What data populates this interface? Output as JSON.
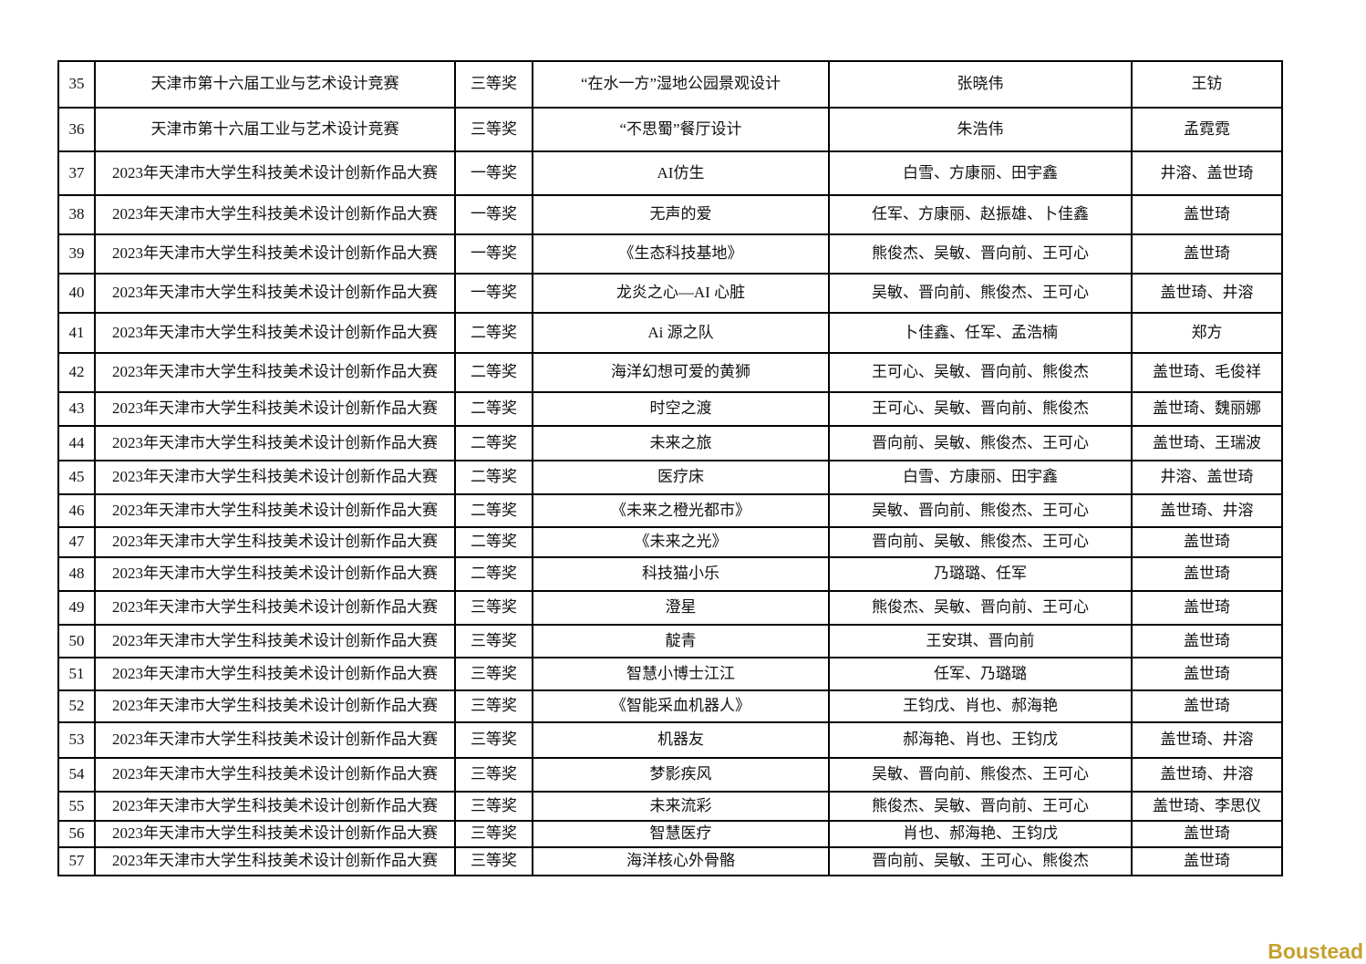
{
  "page": {
    "background_color": "#ffffff",
    "text_color": "#111111",
    "table_border_color": "#000000"
  },
  "watermark": {
    "text": "Boustead",
    "color": "#C5A02E"
  },
  "table": {
    "visible_row_range": "35-57",
    "rows": [
      {
        "no": "35",
        "competition": "天津市第十六届工业与艺术设计竞赛",
        "award": "三等奖",
        "work": "“在水一方”湿地公园景观设计",
        "participants": "张晓伟",
        "advisors": "王钫"
      },
      {
        "no": "36",
        "competition": "天津市第十六届工业与艺术设计竞赛",
        "award": "三等奖",
        "work": "“不思蜀”餐厅设计",
        "participants": "朱浩伟",
        "advisors": "孟霓霓"
      },
      {
        "no": "37",
        "competition": "2023年天津市大学生科技美术设计创新作品大赛",
        "award": "一等奖",
        "work": "AI仿生",
        "participants": "白雪、方康丽、田宇鑫",
        "advisors": "井溶、盖世琦"
      },
      {
        "no": "38",
        "competition": "2023年天津市大学生科技美术设计创新作品大赛",
        "award": "一等奖",
        "work": "无声的爱",
        "participants": "任军、方康丽、赵振雄、卜佳鑫",
        "advisors": "盖世琦"
      },
      {
        "no": "39",
        "competition": "2023年天津市大学生科技美术设计创新作品大赛",
        "award": "一等奖",
        "work": "《生态科技基地》",
        "participants": "熊俊杰、吴敏、晋向前、王可心",
        "advisors": "盖世琦"
      },
      {
        "no": "40",
        "competition": "2023年天津市大学生科技美术设计创新作品大赛",
        "award": "一等奖",
        "work": "龙炎之心—AI 心脏",
        "participants": "吴敏、晋向前、熊俊杰、王可心",
        "advisors": "盖世琦、井溶"
      },
      {
        "no": "41",
        "competition": "2023年天津市大学生科技美术设计创新作品大赛",
        "award": "二等奖",
        "work": "Ai 源之队",
        "participants": "卜佳鑫、任军、孟浩楠",
        "advisors": "郑方"
      },
      {
        "no": "42",
        "competition": "2023年天津市大学生科技美术设计创新作品大赛",
        "award": "二等奖",
        "work": "海洋幻想可爱的黄狮",
        "participants": "王可心、吴敏、晋向前、熊俊杰",
        "advisors": "盖世琦、毛俊祥"
      },
      {
        "no": "43",
        "competition": "2023年天津市大学生科技美术设计创新作品大赛",
        "award": "二等奖",
        "work": "时空之渡",
        "participants": "王可心、吴敏、晋向前、熊俊杰",
        "advisors": "盖世琦、魏丽娜"
      },
      {
        "no": "44",
        "competition": "2023年天津市大学生科技美术设计创新作品大赛",
        "award": "二等奖",
        "work": "未来之旅",
        "participants": "晋向前、吴敏、熊俊杰、王可心",
        "advisors": "盖世琦、王瑞波"
      },
      {
        "no": "45",
        "competition": "2023年天津市大学生科技美术设计创新作品大赛",
        "award": "二等奖",
        "work": "医疗床",
        "participants": "白雪、方康丽、田宇鑫",
        "advisors": "井溶、盖世琦"
      },
      {
        "no": "46",
        "competition": "2023年天津市大学生科技美术设计创新作品大赛",
        "award": "二等奖",
        "work": "《未来之橙光都市》",
        "participants": "吴敏、晋向前、熊俊杰、王可心",
        "advisors": "盖世琦、井溶"
      },
      {
        "no": "47",
        "competition": "2023年天津市大学生科技美术设计创新作品大赛",
        "award": "二等奖",
        "work": "《未来之光》",
        "participants": "晋向前、吴敏、熊俊杰、王可心",
        "advisors": "盖世琦"
      },
      {
        "no": "48",
        "competition": "2023年天津市大学生科技美术设计创新作品大赛",
        "award": "二等奖",
        "work": "科技猫小乐",
        "participants": "乃璐璐、任军",
        "advisors": "盖世琦"
      },
      {
        "no": "49",
        "competition": "2023年天津市大学生科技美术设计创新作品大赛",
        "award": "三等奖",
        "work": "澄星",
        "participants": "熊俊杰、吴敏、晋向前、王可心",
        "advisors": "盖世琦"
      },
      {
        "no": "50",
        "competition": "2023年天津市大学生科技美术设计创新作品大赛",
        "award": "三等奖",
        "work": "靛青",
        "participants": "王安琪、晋向前",
        "advisors": "盖世琦"
      },
      {
        "no": "51",
        "competition": "2023年天津市大学生科技美术设计创新作品大赛",
        "award": "三等奖",
        "work": "智慧小博士江江",
        "participants": "任军、乃璐璐",
        "advisors": "盖世琦"
      },
      {
        "no": "52",
        "competition": "2023年天津市大学生科技美术设计创新作品大赛",
        "award": "三等奖",
        "work": "《智能采血机器人》",
        "participants": "王钧戊、肖也、郝海艳",
        "advisors": "盖世琦"
      },
      {
        "no": "53",
        "competition": "2023年天津市大学生科技美术设计创新作品大赛",
        "award": "三等奖",
        "work": "机器友",
        "participants": "郝海艳、肖也、王钧戊",
        "advisors": "盖世琦、井溶"
      },
      {
        "no": "54",
        "competition": "2023年天津市大学生科技美术设计创新作品大赛",
        "award": "三等奖",
        "work": "梦影疾风",
        "participants": "吴敏、晋向前、熊俊杰、王可心",
        "advisors": "盖世琦、井溶"
      },
      {
        "no": "55",
        "competition": "2023年天津市大学生科技美术设计创新作品大赛",
        "award": "三等奖",
        "work": "未来流彩",
        "participants": "熊俊杰、吴敏、晋向前、王可心",
        "advisors": "盖世琦、李思仪"
      },
      {
        "no": "56",
        "competition": "2023年天津市大学生科技美术设计创新作品大赛",
        "award": "三等奖",
        "work": "智慧医疗",
        "participants": "肖也、郝海艳、王钧戊",
        "advisors": "盖世琦"
      },
      {
        "no": "57",
        "competition": "2023年天津市大学生科技美术设计创新作品大赛",
        "award": "三等奖",
        "work": "海洋核心外骨骼",
        "participants": "晋向前、吴敏、王可心、熊俊杰",
        "advisors": "盖世琦"
      }
    ]
  }
}
